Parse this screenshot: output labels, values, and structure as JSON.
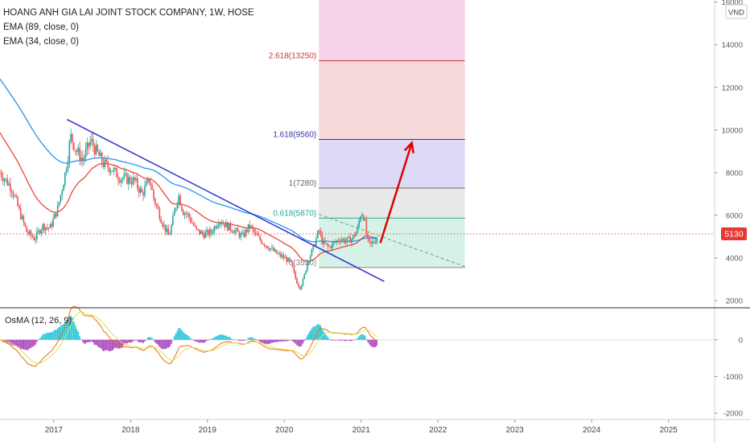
{
  "header": {
    "title": "HOANG ANH GIA LAI JOINT STOCK COMPANY, 1W, HOSE",
    "indicator_1": "EMA (89, close, 0)",
    "indicator_2": "EMA (34, close, 0)",
    "currency": "VND"
  },
  "price_badge": {
    "value": "5130",
    "color": "#e53935"
  },
  "osma_label": "OsMA (12, 26, 9)",
  "colors": {
    "candle_up": "#26a69a",
    "candle_down": "#ef5350",
    "ema89": "#2196f3",
    "ema34": "#f44336",
    "trendline": "#3333cc",
    "arrow": "#e00000",
    "fib_0": "#cfeee3",
    "fib_0618": "#e5e5e5",
    "fib_1": "#d6d3f4",
    "fib_1618": "#f5d2d4",
    "fib_2618": "#f3cde6",
    "fib_line_0618": "#26a69a",
    "fib_line_1": "#666666",
    "fib_line_1618": "#3333aa",
    "fib_line_2618": "#cc3333",
    "hist_pos": "#26c6da",
    "hist_neg": "#ab47bc",
    "macd": "#ef6c00",
    "signal": "#d7e65b"
  },
  "chart_data": [
    {
      "type": "candlestick",
      "title": "HOANG ANH GIA LAI JOINT STOCK COMPANY, 1W, HOSE",
      "xlabel": "",
      "ylabel": "",
      "x_ticks": [
        "2017",
        "2018",
        "2019",
        "2020",
        "2021",
        "2022",
        "2023",
        "2024",
        "2025"
      ],
      "x_range": [
        2016.3,
        2025.6
      ],
      "y_ticks": [
        2000,
        4000,
        6000,
        8000,
        10000,
        12000,
        14000,
        16000
      ],
      "ylim": [
        1700,
        16100
      ],
      "last_price": 5130,
      "price_path": [
        [
          2016.3,
          8000
        ],
        [
          2016.45,
          7300
        ],
        [
          2016.55,
          6200
        ],
        [
          2016.65,
          5200
        ],
        [
          2016.75,
          4900
        ],
        [
          2016.85,
          5500
        ],
        [
          2016.95,
          5400
        ],
        [
          2017.05,
          6300
        ],
        [
          2017.15,
          8000
        ],
        [
          2017.22,
          9700
        ],
        [
          2017.3,
          9000
        ],
        [
          2017.38,
          8600
        ],
        [
          2017.48,
          9500
        ],
        [
          2017.55,
          9000
        ],
        [
          2017.65,
          8400
        ],
        [
          2017.75,
          8200
        ],
        [
          2017.85,
          7800
        ],
        [
          2017.95,
          7700
        ],
        [
          2018.05,
          7600
        ],
        [
          2018.15,
          7000
        ],
        [
          2018.25,
          7700
        ],
        [
          2018.3,
          6800
        ],
        [
          2018.35,
          6300
        ],
        [
          2018.42,
          5600
        ],
        [
          2018.5,
          5000
        ],
        [
          2018.55,
          5800
        ],
        [
          2018.62,
          7000
        ],
        [
          2018.68,
          6200
        ],
        [
          2018.75,
          6000
        ],
        [
          2018.85,
          5300
        ],
        [
          2018.95,
          5100
        ],
        [
          2019.05,
          5200
        ],
        [
          2019.15,
          5800
        ],
        [
          2019.25,
          5500
        ],
        [
          2019.35,
          5300
        ],
        [
          2019.45,
          5000
        ],
        [
          2019.55,
          5500
        ],
        [
          2019.62,
          5100
        ],
        [
          2019.7,
          4800
        ],
        [
          2019.8,
          4500
        ],
        [
          2019.9,
          4200
        ],
        [
          2020.0,
          4000
        ],
        [
          2020.08,
          3800
        ],
        [
          2020.15,
          3000
        ],
        [
          2020.2,
          2600
        ],
        [
          2020.25,
          3000
        ],
        [
          2020.3,
          3800
        ],
        [
          2020.38,
          4500
        ],
        [
          2020.45,
          5300
        ],
        [
          2020.5,
          4700
        ],
        [
          2020.58,
          4500
        ],
        [
          2020.65,
          4700
        ],
        [
          2020.72,
          4900
        ],
        [
          2020.8,
          4800
        ],
        [
          2020.88,
          4900
        ],
        [
          2020.95,
          5300
        ],
        [
          2021.0,
          6200
        ],
        [
          2021.04,
          5900
        ],
        [
          2021.08,
          4800
        ],
        [
          2021.12,
          4600
        ],
        [
          2021.18,
          4800
        ],
        [
          2021.22,
          5130
        ]
      ],
      "fibonacci": [
        {
          "level": "0",
          "price": 3550,
          "label": "0(3550)"
        },
        {
          "level": "0.618",
          "price": 5870,
          "label": "0.618(5870)"
        },
        {
          "level": "1",
          "price": 7280,
          "label": "1(7280)"
        },
        {
          "level": "1.618",
          "price": 9560,
          "label": "1.618(9560)"
        },
        {
          "level": "2.618",
          "price": 13250,
          "label": "2.618(13250)"
        }
      ],
      "fib_time_range": [
        2020.45,
        2022.35
      ],
      "current_price_line": 5130,
      "trendline": [
        [
          2017.17,
          10500
        ],
        [
          2021.3,
          2900
        ]
      ],
      "dashed_projection": [
        [
          2020.45,
          6050
        ],
        [
          2022.35,
          3600
        ]
      ],
      "projection_arrow": [
        [
          2021.25,
          4700
        ],
        [
          2021.66,
          9400
        ]
      ]
    },
    {
      "type": "histogram+line",
      "title": "OsMA (12, 26, 9)",
      "y_ticks": [
        -2000,
        -1000,
        0
      ],
      "ylim": [
        -2150,
        850
      ]
    }
  ]
}
